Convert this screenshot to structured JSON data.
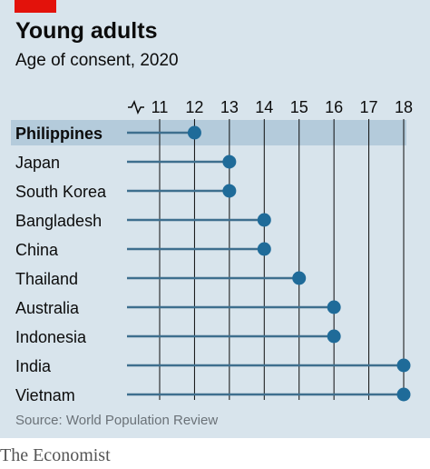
{
  "header": {
    "title": "Young adults",
    "subtitle": "Age of consent, 2020"
  },
  "footer": {
    "source": "Source: World Population Review",
    "brand": "The Economist"
  },
  "colors": {
    "background": "#d8e4ec",
    "accent_red": "#e3120b",
    "dot": "#1f6b99",
    "stem": "#3e6f8e",
    "highlight_row": "#b4cbdb"
  },
  "chart_data": {
    "type": "dot",
    "title": "Young adults",
    "subtitle": "Age of consent, 2020",
    "categories": [
      "Philippines",
      "Japan",
      "South Korea",
      "Bangladesh",
      "China",
      "Thailand",
      "Australia",
      "Indonesia",
      "India",
      "Vietnam"
    ],
    "values": [
      12,
      13,
      13,
      14,
      14,
      15,
      16,
      16,
      18,
      18
    ],
    "highlight": "Philippines",
    "x_ticks": [
      "11",
      "12",
      "13",
      "14",
      "15",
      "16",
      "17",
      "18"
    ],
    "xlim": [
      11,
      18
    ],
    "axis_break": true,
    "grid": "vertical",
    "source": "Source: World Population Review"
  }
}
